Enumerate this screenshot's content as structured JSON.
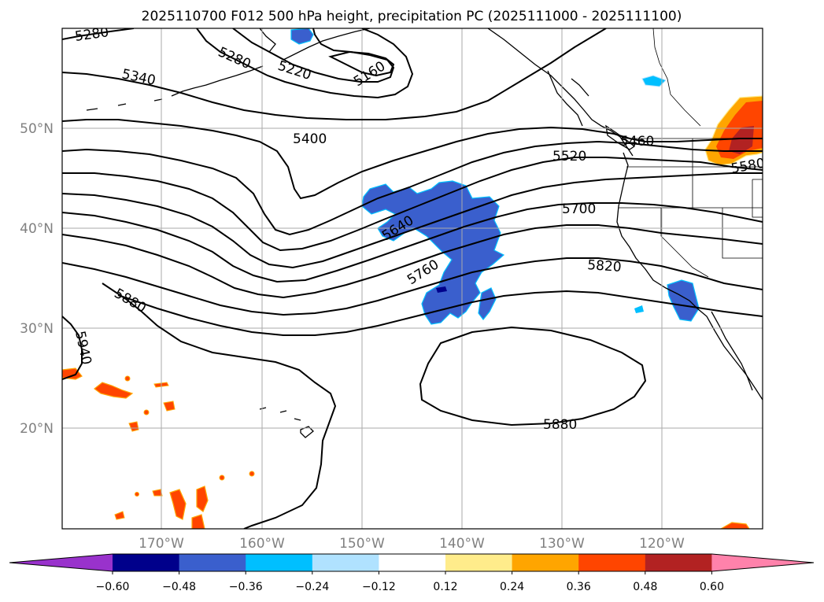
{
  "title": "2025110700 F012 500 hPa height, precipitation PC (2025111000 - 2025111100)",
  "map": {
    "lat_labels": [
      "50°N",
      "40°N",
      "30°N",
      "20°N"
    ],
    "lon_labels": [
      "170°W",
      "160°W",
      "150°W",
      "140°W",
      "130°W",
      "120°W"
    ],
    "gridlines": true
  },
  "contours": {
    "variable": "500 hPa height",
    "color": "#000000",
    "labels": [
      "5280",
      "5280",
      "5220",
      "5160",
      "5340",
      "5400",
      "5460",
      "5520",
      "5580",
      "5640",
      "5700",
      "5760",
      "5820",
      "5880",
      "5880",
      "5940"
    ]
  },
  "colorbar": {
    "ticks": [
      "−0.60",
      "−0.48",
      "−0.36",
      "−0.24",
      "−0.12",
      "0.12",
      "0.24",
      "0.36",
      "0.48",
      "0.60"
    ],
    "colors": [
      "#9932CC",
      "#00008B",
      "#3A5FCD",
      "#00BFFF",
      "#B0E2FF",
      "#FFFFFF",
      "#FFEC8B",
      "#FFA500",
      "#FF4500",
      "#B22222",
      "#FF82AB"
    ]
  }
}
